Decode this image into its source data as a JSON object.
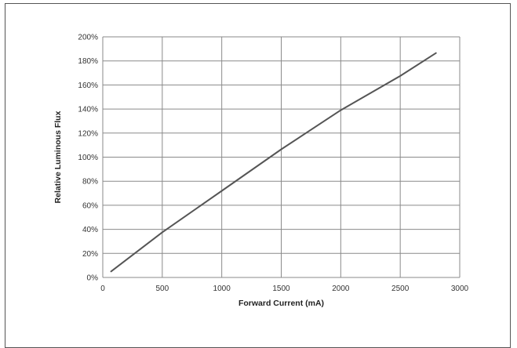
{
  "chart_data": {
    "type": "line",
    "title": "",
    "xlabel": "Forward Current (mA)",
    "ylabel": "Relative Luminous Flux",
    "xlim": [
      0,
      3000
    ],
    "ylim": [
      0,
      200
    ],
    "x_ticks": [
      "0",
      "500",
      "1000",
      "1500",
      "2000",
      "2500",
      "3000"
    ],
    "y_ticks": [
      "0%",
      "20%",
      "40%",
      "60%",
      "80%",
      "100%",
      "120%",
      "140%",
      "160%",
      "180%",
      "200%"
    ],
    "grid": true,
    "legend": "none",
    "series": [
      {
        "color": "#555555",
        "x": [
          70,
          500,
          1000,
          1500,
          2000,
          2500,
          2800
        ],
        "y": [
          5,
          37.5,
          72,
          106.5,
          139,
          167.5,
          186.5
        ]
      }
    ]
  }
}
